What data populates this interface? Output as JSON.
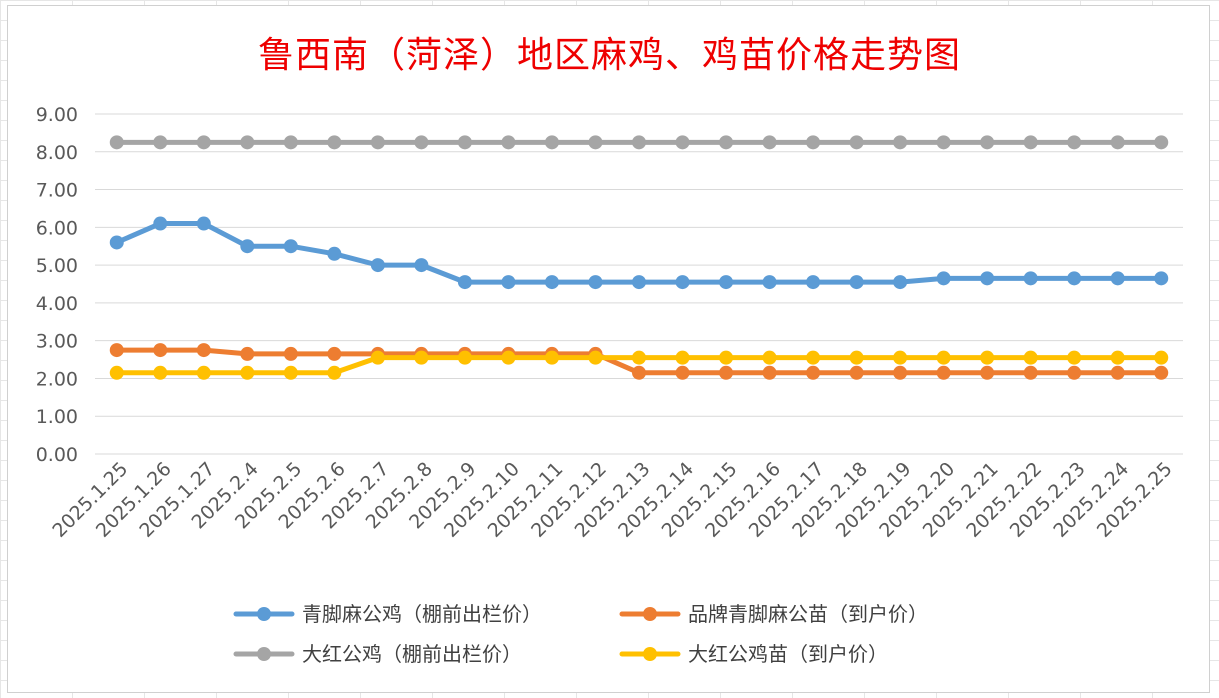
{
  "chart_data": {
    "type": "line",
    "title": "鲁西南（菏泽）地区麻鸡、鸡苗价格走势图",
    "ylim": [
      0,
      9
    ],
    "yticks": [
      "0.00",
      "1.00",
      "2.00",
      "3.00",
      "4.00",
      "5.00",
      "6.00",
      "7.00",
      "8.00",
      "9.00"
    ],
    "grid": true,
    "legend_position": "bottom",
    "categories": [
      "2025.1.25",
      "2025.1.26",
      "2025.1.27",
      "2025.2.4",
      "2025.2.5",
      "2025.2.6",
      "2025.2.7",
      "2025.2.8",
      "2025.2.9",
      "2025.2.10",
      "2025.2.11",
      "2025.2.12",
      "2025.2.13",
      "2025.2.14",
      "2025.2.15",
      "2025.2.16",
      "2025.2.17",
      "2025.2.18",
      "2025.2.19",
      "2025.2.20",
      "2025.2.21",
      "2025.2.22",
      "2025.2.23",
      "2025.2.24",
      "2025.2.25"
    ],
    "series": [
      {
        "name": "青脚麻公鸡（棚前出栏价）",
        "color": "#5b9bd5",
        "values": [
          5.6,
          6.1,
          6.1,
          5.5,
          5.5,
          5.3,
          5.0,
          5.0,
          4.55,
          4.55,
          4.55,
          4.55,
          4.55,
          4.55,
          4.55,
          4.55,
          4.55,
          4.55,
          4.55,
          4.65,
          4.65,
          4.65,
          4.65,
          4.65,
          4.65
        ]
      },
      {
        "name": "品牌青脚麻公苗（到户价）",
        "color": "#ed7d31",
        "values": [
          2.75,
          2.75,
          2.75,
          2.65,
          2.65,
          2.65,
          2.65,
          2.65,
          2.65,
          2.65,
          2.65,
          2.65,
          2.15,
          2.15,
          2.15,
          2.15,
          2.15,
          2.15,
          2.15,
          2.15,
          2.15,
          2.15,
          2.15,
          2.15,
          2.15
        ]
      },
      {
        "name": "大红公鸡（棚前出栏价）",
        "color": "#a5a5a5",
        "values": [
          8.25,
          8.25,
          8.25,
          8.25,
          8.25,
          8.25,
          8.25,
          8.25,
          8.25,
          8.25,
          8.25,
          8.25,
          8.25,
          8.25,
          8.25,
          8.25,
          8.25,
          8.25,
          8.25,
          8.25,
          8.25,
          8.25,
          8.25,
          8.25,
          8.25
        ]
      },
      {
        "name": "大红公鸡苗（到户价）",
        "color": "#ffc000",
        "values": [
          2.15,
          2.15,
          2.15,
          2.15,
          2.15,
          2.15,
          2.55,
          2.55,
          2.55,
          2.55,
          2.55,
          2.55,
          2.55,
          2.55,
          2.55,
          2.55,
          2.55,
          2.55,
          2.55,
          2.55,
          2.55,
          2.55,
          2.55,
          2.55,
          2.55
        ]
      }
    ]
  }
}
